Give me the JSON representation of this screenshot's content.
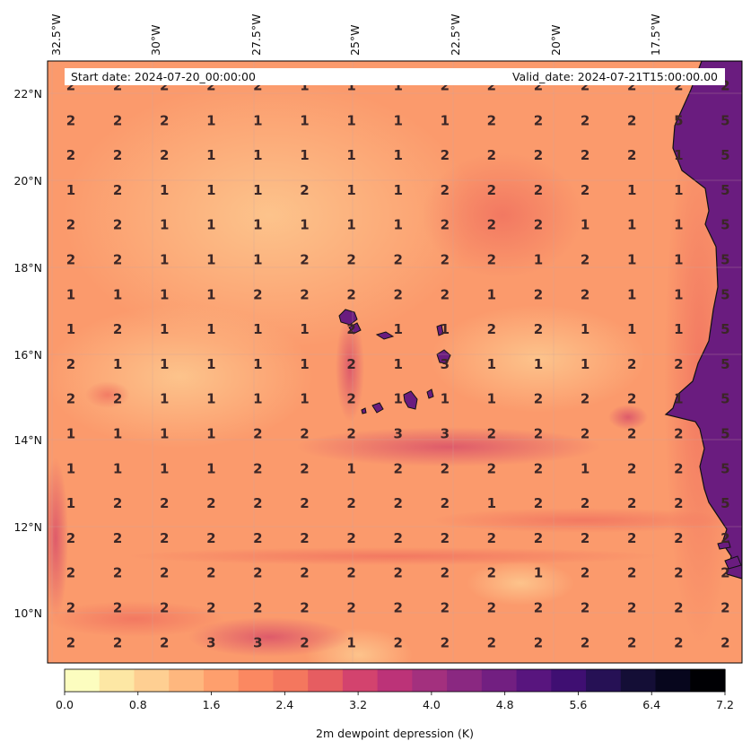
{
  "header": {
    "start_date": "Start date: 2024-07-20_00:00:00",
    "valid_date": "Valid_date: 2024-07-21T15:00:00.00"
  },
  "lon_ticks": [
    "32.5°W",
    "30°W",
    "27.5°W",
    "25°W",
    "22.5°W",
    "20°W",
    "17.5°W"
  ],
  "lat_ticks": [
    "22°N",
    "20°N",
    "18°N",
    "16°N",
    "14°N",
    "12°N",
    "10°N"
  ],
  "colorbar": {
    "label": "2m dewpoint depression (K)",
    "ticks": [
      "0.0",
      "0.8",
      "1.6",
      "2.4",
      "3.2",
      "4.0",
      "4.8",
      "5.6",
      "6.4",
      "7.2"
    ],
    "range": [
      0.0,
      7.2
    ],
    "colormap": "magma_r",
    "colors": [
      "#fcfdbf",
      "#fde7a4",
      "#fecf92",
      "#feb77e",
      "#fe9f6d",
      "#fb8861",
      "#f4775e",
      "#e65d61",
      "#d3436e",
      "#bc3378",
      "#a3307e",
      "#8a2881",
      "#721f81",
      "#58157e",
      "#3f0f72",
      "#261155",
      "#140e36",
      "#07061d",
      "#000004"
    ]
  },
  "land_color": "#6a1c7f",
  "grid_values": [
    [
      "2",
      "2",
      "2",
      "2",
      "2",
      "1",
      "1",
      "1",
      "2",
      "2",
      "2",
      "2",
      "2",
      "2",
      "2"
    ],
    [
      "2",
      "2",
      "2",
      "1",
      "1",
      "1",
      "1",
      "1",
      "1",
      "2",
      "2",
      "2",
      "2",
      "5",
      "5"
    ],
    [
      "2",
      "2",
      "2",
      "1",
      "1",
      "1",
      "1",
      "1",
      "2",
      "2",
      "2",
      "2",
      "2",
      "1",
      "5"
    ],
    [
      "1",
      "2",
      "1",
      "1",
      "1",
      "2",
      "1",
      "1",
      "2",
      "2",
      "2",
      "2",
      "1",
      "1",
      "5"
    ],
    [
      "2",
      "2",
      "1",
      "1",
      "1",
      "1",
      "1",
      "1",
      "2",
      "2",
      "2",
      "1",
      "1",
      "1",
      "5"
    ],
    [
      "2",
      "2",
      "1",
      "1",
      "1",
      "2",
      "2",
      "2",
      "2",
      "2",
      "1",
      "2",
      "1",
      "1",
      "5"
    ],
    [
      "1",
      "1",
      "1",
      "1",
      "2",
      "2",
      "2",
      "2",
      "2",
      "1",
      "2",
      "2",
      "1",
      "1",
      "5"
    ],
    [
      "1",
      "2",
      "1",
      "1",
      "1",
      "1",
      "2",
      "1",
      "1",
      "2",
      "2",
      "1",
      "1",
      "1",
      "5"
    ],
    [
      "2",
      "1",
      "1",
      "1",
      "1",
      "1",
      "2",
      "1",
      "3",
      "1",
      "1",
      "1",
      "2",
      "2",
      "5"
    ],
    [
      "2",
      "2",
      "1",
      "1",
      "1",
      "1",
      "2",
      "1",
      "1",
      "1",
      "2",
      "2",
      "2",
      "1",
      "5"
    ],
    [
      "1",
      "1",
      "1",
      "1",
      "2",
      "2",
      "2",
      "3",
      "3",
      "2",
      "2",
      "2",
      "2",
      "2",
      "5"
    ],
    [
      "1",
      "1",
      "1",
      "1",
      "2",
      "2",
      "1",
      "2",
      "2",
      "2",
      "2",
      "1",
      "2",
      "2",
      "5"
    ],
    [
      "1",
      "2",
      "2",
      "2",
      "2",
      "2",
      "2",
      "2",
      "2",
      "1",
      "2",
      "2",
      "2",
      "2",
      "5"
    ],
    [
      "2",
      "2",
      "2",
      "2",
      "2",
      "2",
      "2",
      "2",
      "2",
      "2",
      "2",
      "2",
      "2",
      "2",
      "2"
    ],
    [
      "2",
      "2",
      "2",
      "2",
      "2",
      "2",
      "2",
      "2",
      "2",
      "2",
      "1",
      "2",
      "2",
      "2",
      "2"
    ],
    [
      "2",
      "2",
      "2",
      "2",
      "2",
      "2",
      "2",
      "2",
      "2",
      "2",
      "2",
      "2",
      "2",
      "2",
      "2"
    ],
    [
      "2",
      "2",
      "2",
      "3",
      "3",
      "2",
      "1",
      "2",
      "2",
      "2",
      "2",
      "2",
      "2",
      "2",
      "2"
    ]
  ]
}
